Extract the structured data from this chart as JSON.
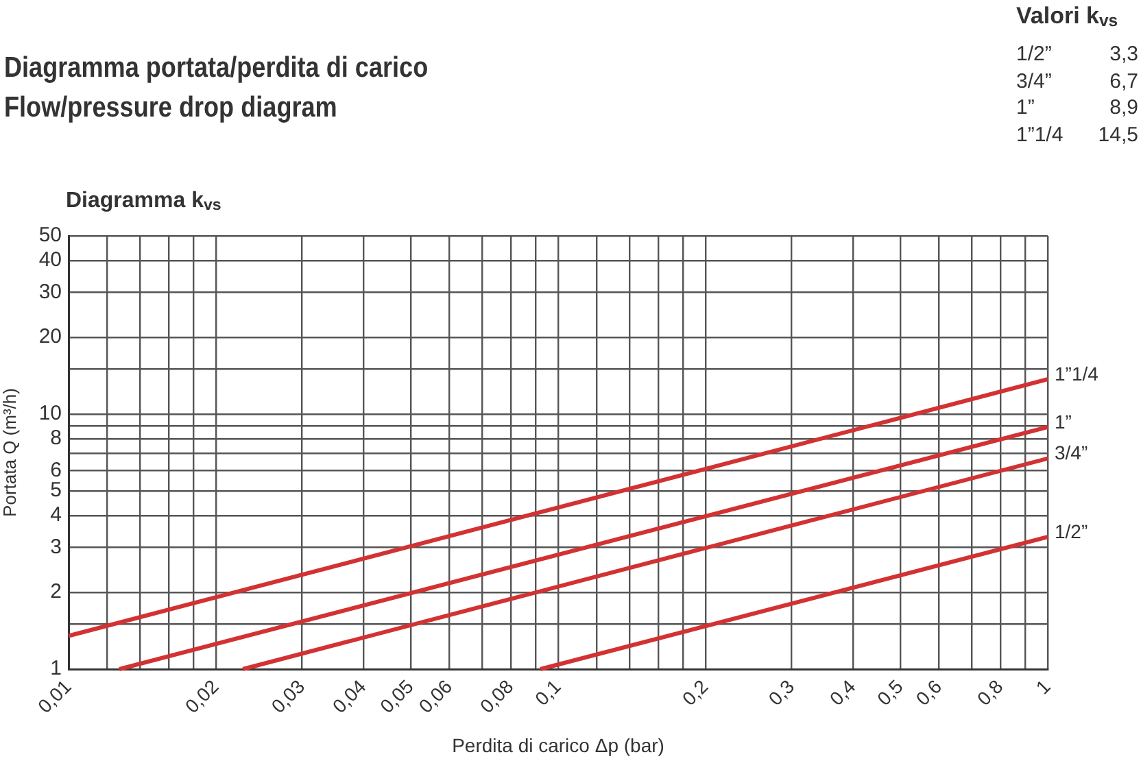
{
  "chart_data": [
    {
      "type": "line",
      "title": "Diagramma portata/perdita di carico",
      "subtitle": "Flow/pressure drop diagram",
      "annotations": [
        "Diagramma k$_{vs}$"
      ],
      "xlabel": "Perdita di carico Δp (bar)",
      "ylabel": "Portata Q (m³/h)",
      "series": [
        {
          "name": "1/2”",
          "color": "#d23232",
          "x": [
            0.092,
            1
          ],
          "values": [
            1,
            3.3
          ]
        },
        {
          "name": "3/4”",
          "color": "#d23232",
          "x": [
            0.0227,
            1
          ],
          "values": [
            1,
            6.7
          ]
        },
        {
          "name": "1”",
          "color": "#d23232",
          "x": [
            0.0127,
            1
          ],
          "values": [
            1,
            8.9
          ]
        },
        {
          "name": "1”1/4",
          "color": "#d23232",
          "x": [
            0.01,
            1
          ],
          "values": [
            1.35,
            13.7
          ]
        }
      ],
      "log": "xy",
      "xlim": [
        0.01,
        1
      ],
      "ylim": [
        1,
        50
      ],
      "xticks": [
        {
          "value": 0.01,
          "label": "0,01"
        },
        {
          "value": 0.012,
          "label": null
        },
        {
          "value": 0.014,
          "label": null
        },
        {
          "value": 0.016,
          "label": null
        },
        {
          "value": 0.018,
          "label": null
        },
        {
          "value": 0.02,
          "label": "0,02"
        },
        {
          "value": 0.03,
          "label": "0,03"
        },
        {
          "value": 0.04,
          "label": "0,04"
        },
        {
          "value": 0.05,
          "label": "0,05"
        },
        {
          "value": 0.06,
          "label": "0,06"
        },
        {
          "value": 0.07,
          "label": null
        },
        {
          "value": 0.08,
          "label": "0,08"
        },
        {
          "value": 0.09,
          "label": null
        },
        {
          "value": 0.1,
          "label": "0,1"
        },
        {
          "value": 0.12,
          "label": null
        },
        {
          "value": 0.14,
          "label": null
        },
        {
          "value": 0.16,
          "label": null
        },
        {
          "value": 0.18,
          "label": null
        },
        {
          "value": 0.2,
          "label": "0,2"
        },
        {
          "value": 0.3,
          "label": "0,3"
        },
        {
          "value": 0.4,
          "label": "0,4"
        },
        {
          "value": 0.5,
          "label": "0,5"
        },
        {
          "value": 0.6,
          "label": "0,6"
        },
        {
          "value": 0.7,
          "label": null
        },
        {
          "value": 0.8,
          "label": "0,8"
        },
        {
          "value": 0.9,
          "label": null
        },
        1
      ],
      "yticks": [
        1,
        {
          "value": 1.5,
          "label": null
        },
        2,
        3,
        4,
        5,
        6,
        {
          "value": 7,
          "label": null
        },
        8,
        {
          "value": 9,
          "label": null
        },
        10,
        {
          "value": 15,
          "label": null
        },
        20,
        30,
        40,
        50
      ],
      "grid": true,
      "legend": false,
      "marker": "none",
      "line_style": "solid"
    },
    {
      "type": "other",
      "title": "Valori k$_{vs}$",
      "categories": [
        "1/2”",
        "3/4”",
        "1”",
        "1”1/4"
      ],
      "value_labels": [
        "3,3",
        "6,7",
        "8,9",
        "14,5"
      ]
    }
  ]
}
